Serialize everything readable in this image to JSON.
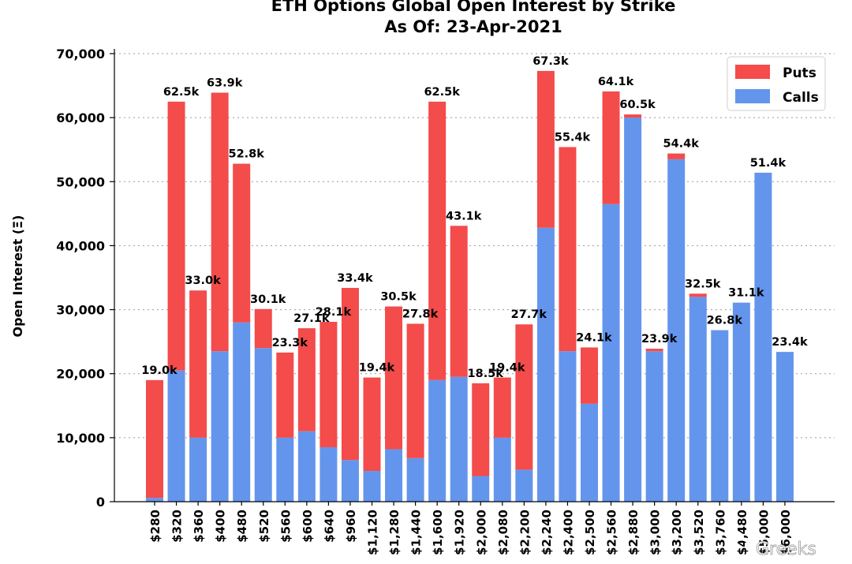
{
  "chart_data": {
    "type": "bar",
    "stacked": true,
    "title": "ETH Options Global Open Interest by Strike",
    "subtitle": "As Of: 23-Apr-2021",
    "xlabel": "",
    "ylabel": "Open Interest (Ξ)",
    "ylim": [
      0,
      70000
    ],
    "yticks": [
      0,
      10000,
      20000,
      30000,
      40000,
      50000,
      60000,
      70000
    ],
    "ytick_labels": [
      "0",
      "10,000",
      "20,000",
      "30,000",
      "40,000",
      "50,000",
      "60,000",
      "70,000"
    ],
    "grid": true,
    "legend_position": "top-right",
    "categories": [
      "$280",
      "$320",
      "$360",
      "$400",
      "$480",
      "$520",
      "$560",
      "$600",
      "$640",
      "$960",
      "$1,120",
      "$1,280",
      "$1,440",
      "$1,600",
      "$1,920",
      "$2,000",
      "$2,080",
      "$2,200",
      "$2,240",
      "$2,400",
      "$2,500",
      "$2,560",
      "$2,880",
      "$3,000",
      "$3,200",
      "$3,520",
      "$3,760",
      "$4,480",
      "$5,000",
      "$6,000"
    ],
    "series": [
      {
        "name": "Calls",
        "color": "#6495ed",
        "values": [
          600,
          20500,
          10000,
          23500,
          28000,
          24000,
          10000,
          11000,
          8500,
          6500,
          4800,
          8200,
          6800,
          19000,
          19500,
          4000,
          10000,
          5000,
          42800,
          23500,
          15300,
          46500,
          60000,
          23500,
          53500,
          32000,
          26800,
          31100,
          51400,
          23400
        ]
      },
      {
        "name": "Puts",
        "color": "#f44b4b",
        "values": [
          18400,
          42000,
          23000,
          40400,
          24800,
          6100,
          13300,
          16100,
          19600,
          26900,
          14600,
          22300,
          21000,
          43500,
          23600,
          14500,
          9400,
          22700,
          24500,
          31900,
          8800,
          17600,
          500,
          400,
          900,
          500,
          0,
          0,
          0,
          0
        ]
      }
    ],
    "data_labels": [
      "19.0k",
      "62.5k",
      "33.0k",
      "63.9k",
      "52.8k",
      "30.1k",
      "23.3k",
      "27.1k",
      "28.1k",
      "33.4k",
      "19.4k",
      "30.5k",
      "27.8k",
      "62.5k",
      "43.1k",
      "18.5k",
      "19.4k",
      "27.7k",
      "67.3k",
      "55.4k",
      "24.1k",
      "64.1k",
      "60.5k",
      "23.9k",
      "54.4k",
      "32.5k",
      "26.8k",
      "31.1k",
      "51.4k",
      "23.4k"
    ]
  },
  "watermark": "Greeks"
}
